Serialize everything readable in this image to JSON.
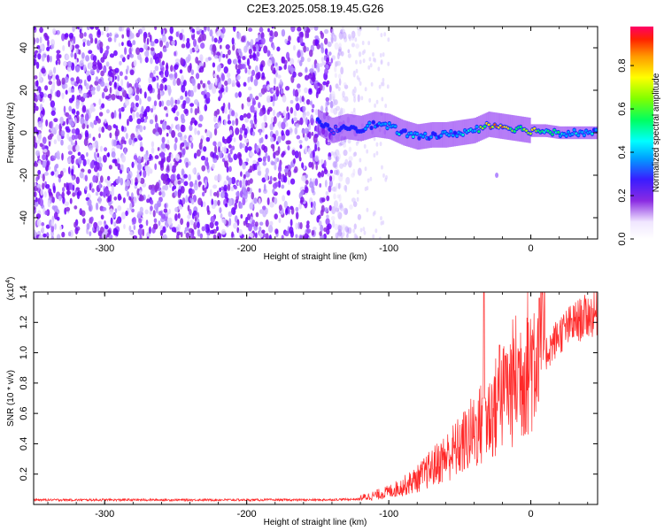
{
  "title": "C2E3.2025.058.19.45.G26",
  "chart_data": [
    {
      "type": "heatmap",
      "xlabel": "Height of straight line (km)",
      "ylabel": "Frequency (Hz)",
      "xlim": [
        -350,
        47
      ],
      "ylim": [
        -50,
        50
      ],
      "x_ticks": [
        -300,
        -200,
        -100,
        0
      ],
      "y_ticks": [
        -40,
        -20,
        0,
        20,
        40
      ],
      "colorbar": {
        "label": "Normalized spectral amplitude",
        "range": [
          0,
          0.98
        ],
        "ticks": [
          "0.0",
          "0.2",
          "0.4",
          "0.6",
          "0.8"
        ]
      },
      "regions": [
        {
          "x_from": -350,
          "x_to": -130,
          "description_level": 0.22
        },
        {
          "x_from": -130,
          "x_to": 47,
          "description_level": 0.5
        }
      ],
      "signal_track": {
        "x": [
          -150,
          -140,
          -130,
          -120,
          -110,
          -100,
          -90,
          -80,
          -70,
          -60,
          -50,
          -40,
          -30,
          -20,
          -10,
          0,
          10,
          20,
          30,
          40,
          47
        ],
        "y": [
          5,
          1,
          3,
          2,
          4,
          3,
          0,
          -2,
          -1,
          -1,
          0,
          1,
          4,
          3,
          2,
          1,
          1,
          0,
          0,
          0,
          0
        ],
        "amplitude": [
          0.35,
          0.3,
          0.35,
          0.35,
          0.4,
          0.45,
          0.45,
          0.45,
          0.4,
          0.42,
          0.45,
          0.5,
          0.8,
          0.85,
          0.6,
          0.75,
          0.65,
          0.55,
          0.5,
          0.45,
          0.45
        ]
      },
      "stray_point": {
        "x": -24,
        "y": -20
      }
    },
    {
      "type": "line",
      "xlabel": "Height of straight line (km)",
      "ylabel": "SNR (10 * v/v)",
      "scale_label_prefix": "(x10",
      "scale_label_exp": "4",
      "scale_label_suffix": ")",
      "xlim": [
        -350,
        47
      ],
      "ylim": [
        0,
        1.4
      ],
      "x_ticks": [
        -300,
        -200,
        -100,
        0
      ],
      "y_ticks": [
        "0.2",
        "0.4",
        "0.6",
        "0.8",
        "1.0",
        "1.2",
        "1.4"
      ],
      "series": [
        {
          "color": "#ff2a2a",
          "x": [
            -350,
            -300,
            -250,
            -200,
            -150,
            -120,
            -110,
            -100,
            -90,
            -80,
            -70,
            -60,
            -50,
            -40,
            -30,
            -20,
            -10,
            0,
            10,
            20,
            30,
            40,
            47
          ],
          "y": [
            0.03,
            0.03,
            0.03,
            0.03,
            0.03,
            0.035,
            0.05,
            0.07,
            0.1,
            0.14,
            0.2,
            0.26,
            0.32,
            0.4,
            0.48,
            0.58,
            0.7,
            0.8,
            0.95,
            1.08,
            1.15,
            1.2,
            1.21
          ]
        }
      ],
      "spikes": [
        {
          "x": -33,
          "y": 1.4
        },
        {
          "x": -22,
          "y": 1.05
        },
        {
          "x": -18,
          "y": 0.98
        },
        {
          "x": 6,
          "y": 1.36
        }
      ],
      "dips": [
        {
          "x": 6,
          "y": 0.17
        },
        {
          "x": -10,
          "y": 0.35
        }
      ]
    }
  ]
}
